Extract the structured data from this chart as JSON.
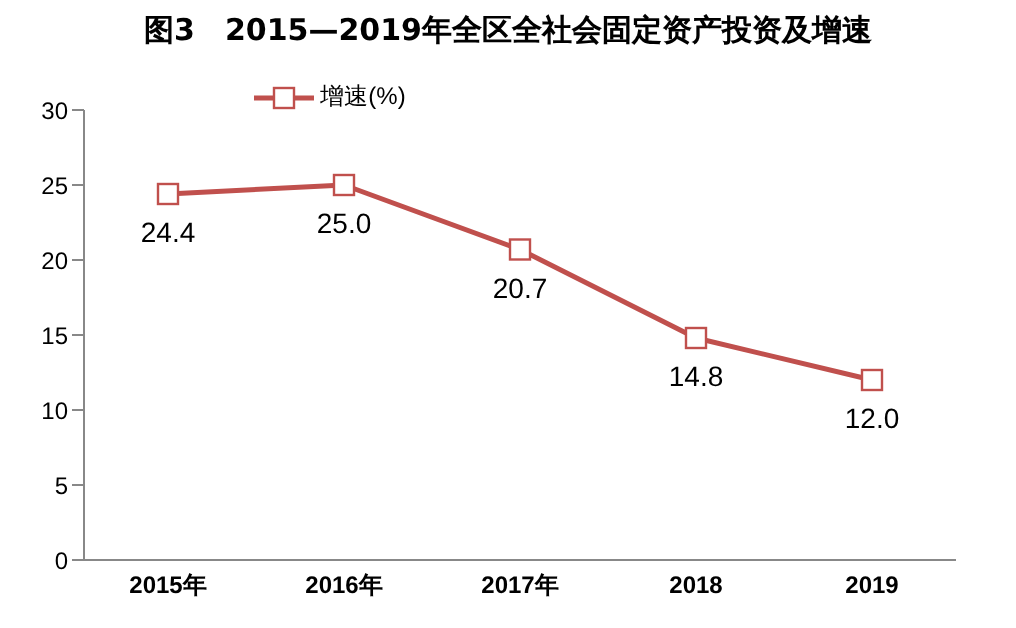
{
  "chart_data": {
    "type": "line",
    "title": "图3　2015—2019年全区全社会固定资产投资及增速",
    "categories": [
      "2015年",
      "2016年",
      "2017年",
      "2018",
      "2019"
    ],
    "series": [
      {
        "name": "增速(%)",
        "color": "#c0504d",
        "values": [
          24.4,
          25.0,
          20.7,
          14.8,
          12.0
        ],
        "value_labels": [
          "24.4",
          "25.0",
          "20.7",
          "14.8",
          "12.0"
        ]
      }
    ],
    "ylim": [
      0,
      30
    ],
    "yticks": [
      0,
      5,
      10,
      15,
      20,
      25,
      30
    ],
    "grid": false,
    "legend": "top",
    "marker": "square",
    "line_style": "solid"
  }
}
